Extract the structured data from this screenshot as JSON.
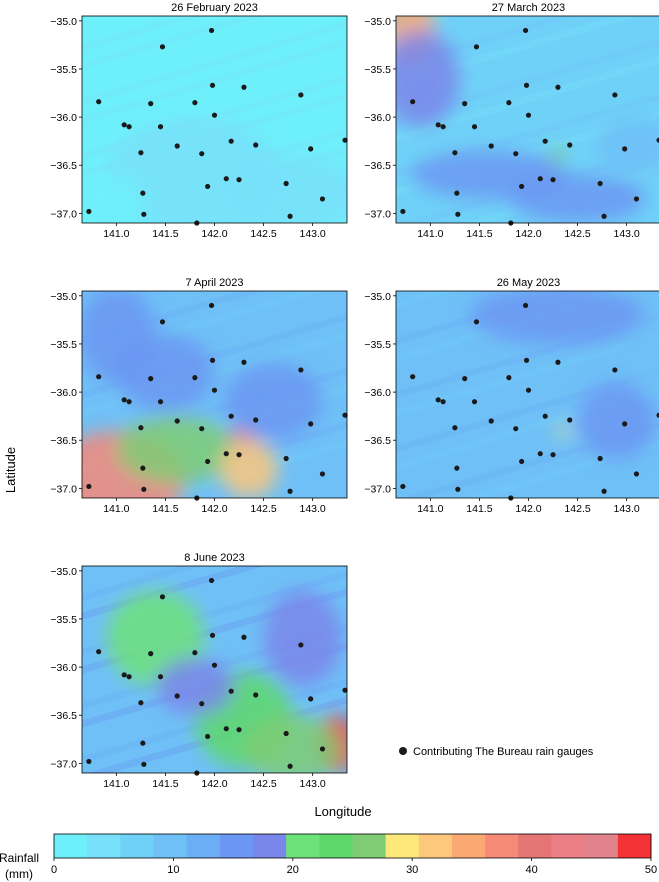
{
  "figure": {
    "xlabel": "Longitude",
    "ylabel": "Latitude",
    "legend_label": "Contributing The Bureau rain gauges",
    "colorbar": {
      "label_line1": "Rainfall",
      "label_line2": "(mm)",
      "min": 0,
      "max": 50,
      "ticks": [
        "0",
        "10",
        "20",
        "30",
        "40",
        "50"
      ],
      "colors": [
        "#6ef0fb",
        "#78e0fa",
        "#6fd1f8",
        "#6fc0f7",
        "#6caef5",
        "#6b96f2",
        "#7b86ea",
        "#6ee27a",
        "#5ed86a",
        "#7fcc74",
        "#fde97a",
        "#fdc77c",
        "#fba972",
        "#f58a79",
        "#e57474",
        "#ec7e86",
        "#e2838c",
        "#f33236"
      ]
    }
  },
  "gauges": [
    [
      140.72,
      -36.98
    ],
    [
      140.82,
      -35.84
    ],
    [
      141.08,
      -36.08
    ],
    [
      141.13,
      -36.1
    ],
    [
      141.25,
      -36.37
    ],
    [
      141.27,
      -36.79
    ],
    [
      141.28,
      -37.01
    ],
    [
      141.35,
      -35.86
    ],
    [
      141.45,
      -36.1
    ],
    [
      141.47,
      -35.27
    ],
    [
      141.62,
      -36.3
    ],
    [
      141.8,
      -35.85
    ],
    [
      141.82,
      -37.1
    ],
    [
      141.87,
      -36.38
    ],
    [
      141.93,
      -36.72
    ],
    [
      141.98,
      -35.67
    ],
    [
      142.0,
      -35.98
    ],
    [
      141.97,
      -35.1
    ],
    [
      142.12,
      -36.64
    ],
    [
      142.17,
      -36.25
    ],
    [
      142.25,
      -36.65
    ],
    [
      142.3,
      -35.69
    ],
    [
      142.42,
      -36.29
    ],
    [
      142.73,
      -36.69
    ],
    [
      142.77,
      -37.03
    ],
    [
      142.88,
      -35.77
    ],
    [
      142.98,
      -36.33
    ],
    [
      143.1,
      -36.85
    ],
    [
      143.33,
      -36.24
    ]
  ],
  "panels": [
    {
      "title": "26 February 2023",
      "base": 2,
      "blobs": [
        [
          141.8,
          -36.6,
          0.9,
          0.6,
          4
        ],
        [
          142.8,
          -36.8,
          0.7,
          0.4,
          5
        ],
        [
          140.9,
          -36.9,
          0.4,
          0.3,
          2
        ]
      ]
    },
    {
      "title": "27 March 2023",
      "base": 6,
      "blobs": [
        [
          140.8,
          -35.1,
          0.25,
          0.35,
          34
        ],
        [
          140.9,
          -35.6,
          0.4,
          0.5,
          18
        ],
        [
          141.6,
          -36.6,
          0.8,
          0.25,
          14
        ],
        [
          142.5,
          -36.85,
          0.7,
          0.25,
          16
        ],
        [
          143.1,
          -36.3,
          0.4,
          0.3,
          10
        ],
        [
          142.3,
          -36.4,
          0.08,
          0.08,
          26
        ]
      ]
    },
    {
      "title": "7 April 2023",
      "base": 9,
      "blobs": [
        [
          141.0,
          -36.9,
          0.7,
          0.5,
          38
        ],
        [
          141.6,
          -36.6,
          0.6,
          0.35,
          26
        ],
        [
          142.3,
          -36.45,
          0.15,
          0.1,
          44
        ],
        [
          142.35,
          -36.8,
          0.3,
          0.3,
          32
        ],
        [
          141.5,
          -35.8,
          0.5,
          0.4,
          16
        ],
        [
          142.6,
          -36.1,
          0.5,
          0.4,
          14
        ],
        [
          141.0,
          -35.4,
          0.4,
          0.5,
          16
        ]
      ]
    },
    {
      "title": "26 May 2023",
      "base": 9,
      "blobs": [
        [
          142.3,
          -35.2,
          0.9,
          0.3,
          14
        ],
        [
          142.9,
          -36.3,
          0.4,
          0.4,
          14
        ],
        [
          142.35,
          -36.4,
          0.08,
          0.05,
          30
        ],
        [
          143.3,
          -35.6,
          0.3,
          0.4,
          10
        ]
      ]
    },
    {
      "title": "8 June 2023",
      "base": 11,
      "blobs": [
        [
          141.4,
          -35.7,
          0.5,
          0.5,
          20
        ],
        [
          142.3,
          -36.55,
          0.5,
          0.5,
          24
        ],
        [
          143.25,
          -36.8,
          0.2,
          0.3,
          50
        ],
        [
          142.8,
          -36.85,
          0.5,
          0.35,
          26
        ],
        [
          142.9,
          -35.7,
          0.4,
          0.5,
          18
        ],
        [
          141.8,
          -36.2,
          0.4,
          0.3,
          18
        ]
      ]
    }
  ],
  "axes": {
    "xlim": [
      140.65,
      143.35
    ],
    "ylim": [
      -37.1,
      -34.95
    ],
    "xticks": [
      141.0,
      141.5,
      142.0,
      142.5,
      143.0
    ],
    "yticks": [
      -35.0,
      -35.5,
      -36.0,
      -36.5,
      -37.0
    ],
    "xtick_labels": [
      "141.0",
      "141.5",
      "142.0",
      "142.5",
      "143.0"
    ],
    "ytick_labels": [
      "−35.0",
      "−35.5",
      "−36.0",
      "−36.5",
      "−37.0"
    ]
  }
}
